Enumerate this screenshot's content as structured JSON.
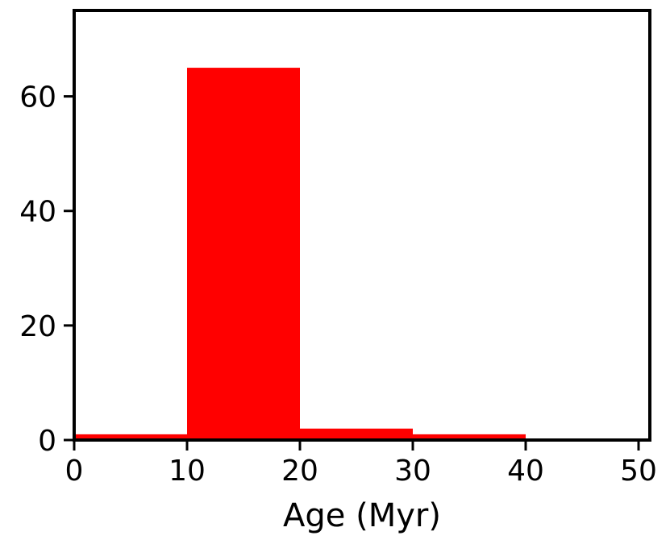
{
  "chart_data": {
    "type": "bar",
    "title": "",
    "xlabel": "Age (Myr)",
    "ylabel": "",
    "xlim": [
      0,
      51
    ],
    "ylim": [
      0,
      75
    ],
    "bins": [
      {
        "x0": 0,
        "x1": 10,
        "value": 1
      },
      {
        "x0": 10,
        "x1": 20,
        "value": 65
      },
      {
        "x0": 20,
        "x1": 30,
        "value": 2
      },
      {
        "x0": 30,
        "x1": 40,
        "value": 1
      },
      {
        "x0": 40,
        "x1": 50,
        "value": 0
      }
    ],
    "xticks": [
      0,
      10,
      20,
      30,
      40,
      50
    ],
    "xtick_labels": [
      "0",
      "10",
      "20",
      "30",
      "40",
      "50"
    ],
    "yticks": [
      0,
      20,
      40,
      60
    ],
    "ytick_labels": [
      "0",
      "20",
      "40",
      "60"
    ],
    "bar_color": "#ff0000",
    "grid": false,
    "legend": "none"
  }
}
